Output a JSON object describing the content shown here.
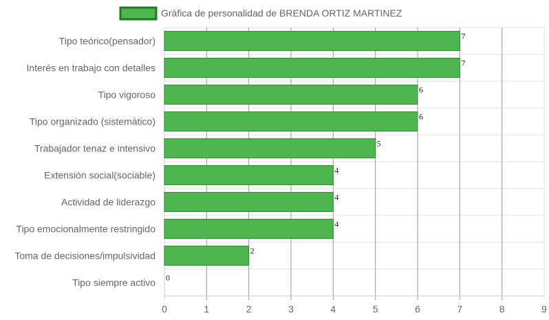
{
  "chart_data": {
    "type": "bar",
    "orientation": "horizontal",
    "legend_position": "top",
    "grid": true,
    "categories": [
      "Tipo teórico(pensador)",
      "Interés en trabajo con detalles",
      "Tipo vigoroso",
      "Tipo organizado (sistemático)",
      "Trabajador tenaz e intensivo",
      "Extensión social(sociable)",
      "Actividad de liderazgo",
      "Tipo emocionalmente restringido",
      "Toma de decisiones/impulsividad",
      "Tipo siempre activo"
    ],
    "series": [
      {
        "name": "Gráfica de personalidad de BRENDA ORTIZ MARTINEZ",
        "values": [
          7,
          7,
          6,
          6,
          5,
          4,
          4,
          4,
          2,
          0
        ]
      }
    ],
    "xlim": [
      0,
      9
    ],
    "x_ticks": [
      "0",
      "1",
      "2",
      "3",
      "4",
      "5",
      "6",
      "7",
      "8",
      "9"
    ],
    "colors": {
      "bar_fill": "#4db64d",
      "bar_stroke": "#2e8b2e",
      "legend_fill": "#4db64d",
      "legend_stroke": "#1e7a1e",
      "grid": "#e0e0e0",
      "grid_major": "#999999"
    }
  }
}
